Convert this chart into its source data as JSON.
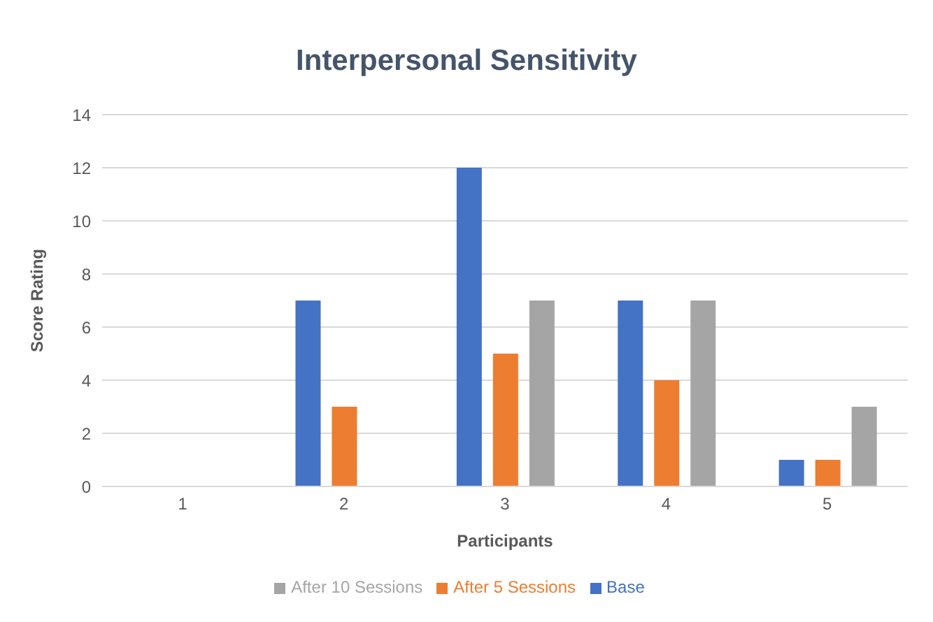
{
  "chart_data": {
    "type": "bar",
    "title": "Interpersonal Sensitivity",
    "xlabel": "Participants",
    "ylabel": "Score Rating",
    "categories": [
      "1",
      "2",
      "3",
      "4",
      "5"
    ],
    "series": [
      {
        "name": "Base",
        "color": "#4472c4",
        "values": [
          0,
          7,
          12,
          7,
          1
        ]
      },
      {
        "name": "After 5 Sessions",
        "color": "#ed7d31",
        "values": [
          0,
          3,
          5,
          4,
          1
        ]
      },
      {
        "name": "After 10 Sessions",
        "color": "#a5a5a5",
        "values": [
          0,
          0,
          7,
          7,
          3
        ]
      }
    ],
    "ylim": [
      0,
      14
    ],
    "yticks": [
      0,
      2,
      4,
      6,
      8,
      10,
      12,
      14
    ],
    "grid": "y",
    "legend": "bottom"
  }
}
